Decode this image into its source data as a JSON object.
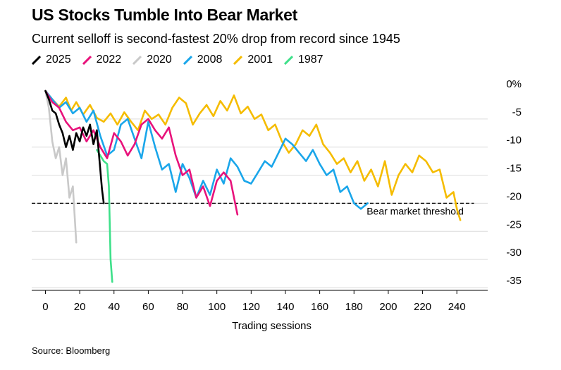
{
  "header": {
    "title": "US Stocks Tumble Into Bear Market",
    "subtitle": "Current selloff is second-fastest 20% drop from record since 1945"
  },
  "legend": {
    "items": [
      {
        "label": "2025",
        "color": "#000000"
      },
      {
        "label": "2022",
        "color": "#e8127b"
      },
      {
        "label": "2020",
        "color": "#c9c9c9"
      },
      {
        "label": "2008",
        "color": "#1aa6ea"
      },
      {
        "label": "2001",
        "color": "#f5bc00"
      },
      {
        "label": "1987",
        "color": "#3ee08a"
      }
    ]
  },
  "footer": {
    "source": "Source: Bloomberg"
  },
  "chart_data": {
    "type": "line",
    "title": "US Stocks Tumble Into Bear Market",
    "xlabel": "Trading sessions",
    "ylabel": "",
    "xlim": [
      -8,
      258
    ],
    "ylim": [
      -35.5,
      1
    ],
    "x_ticks": [
      0,
      20,
      40,
      60,
      80,
      100,
      120,
      140,
      160,
      180,
      200,
      220,
      240
    ],
    "x_tick_labels": [
      "0",
      "20",
      "40",
      "60",
      "80",
      "100",
      "120",
      "140",
      "160",
      "180",
      "200",
      "220",
      "240"
    ],
    "y_ticks": [
      0,
      -5,
      -10,
      -15,
      -20,
      -25,
      -30,
      -35
    ],
    "y_tick_labels": [
      "0%",
      "-5",
      "-10",
      "-15",
      "-20",
      "-25",
      "-30",
      "-35"
    ],
    "grid": true,
    "threshold": {
      "value": -20,
      "label": "Bear market threshold"
    },
    "series": [
      {
        "name": "2001",
        "color": "#f5bc00",
        "x": [
          0,
          4,
          8,
          12,
          15,
          18,
          22,
          26,
          30,
          34,
          38,
          42,
          46,
          50,
          54,
          58,
          62,
          66,
          70,
          74,
          78,
          82,
          86,
          90,
          94,
          98,
          102,
          106,
          110,
          114,
          118,
          122,
          126,
          130,
          134,
          138,
          142,
          146,
          150,
          154,
          158,
          162,
          166,
          170,
          174,
          178,
          182,
          186,
          190,
          194,
          198,
          202,
          206,
          210,
          214,
          218,
          222,
          226,
          230,
          234,
          238,
          240,
          242
        ],
        "y": [
          0,
          -1.5,
          -2.8,
          -1.2,
          -3.5,
          -2.0,
          -4.2,
          -2.5,
          -4.8,
          -5.5,
          -4.0,
          -6.0,
          -3.8,
          -5.5,
          -7.0,
          -3.5,
          -5.0,
          -4.2,
          -6.0,
          -3.0,
          -1.2,
          -2.2,
          -6.0,
          -4.0,
          -2.5,
          -4.5,
          -1.8,
          -3.5,
          -0.8,
          -4.0,
          -2.8,
          -5.0,
          -4.2,
          -7.0,
          -6.0,
          -9.0,
          -11.0,
          -9.5,
          -7.0,
          -8.0,
          -6.0,
          -9.5,
          -11.0,
          -13.0,
          -12.0,
          -14.5,
          -12.5,
          -16.0,
          -14.0,
          -17.0,
          -12.5,
          -18.5,
          -15.0,
          -13.0,
          -14.5,
          -11.5,
          -12.5,
          -14.5,
          -14.0,
          -19.0,
          -18.0,
          -21.0,
          -23.0
        ]
      },
      {
        "name": "2008",
        "color": "#1aa6ea",
        "x": [
          0,
          4,
          8,
          12,
          16,
          20,
          24,
          28,
          32,
          36,
          40,
          44,
          48,
          52,
          56,
          60,
          64,
          68,
          72,
          76,
          80,
          84,
          88,
          92,
          96,
          100,
          104,
          108,
          112,
          116,
          120,
          124,
          128,
          132,
          136,
          140,
          144,
          148,
          152,
          156,
          160,
          164,
          168,
          172,
          176,
          180,
          184,
          188
        ],
        "y": [
          0,
          -1.5,
          -3.0,
          -2.0,
          -4.0,
          -3.0,
          -5.5,
          -3.5,
          -8.0,
          -11.5,
          -10.5,
          -6.0,
          -5.0,
          -8.5,
          -12.0,
          -5.5,
          -10.0,
          -14.0,
          -13.0,
          -18.0,
          -13.0,
          -15.5,
          -19.0,
          -16.0,
          -18.5,
          -14.0,
          -16.5,
          -12.0,
          -13.5,
          -16.0,
          -16.5,
          -14.5,
          -12.5,
          -13.5,
          -11.0,
          -8.5,
          -9.5,
          -11.0,
          -12.5,
          -10.5,
          -13.0,
          -15.0,
          -14.0,
          -18.0,
          -17.0,
          -20.0,
          -21.0,
          -20.0
        ]
      },
      {
        "name": "2022",
        "color": "#e8127b",
        "x": [
          0,
          4,
          8,
          12,
          16,
          20,
          24,
          28,
          32,
          36,
          40,
          44,
          48,
          52,
          56,
          60,
          64,
          68,
          72,
          76,
          80,
          84,
          88,
          92,
          96,
          100,
          104,
          108,
          112
        ],
        "y": [
          0,
          -2.0,
          -3.0,
          -5.5,
          -7.0,
          -6.5,
          -9.0,
          -7.0,
          -10.0,
          -12.0,
          -7.5,
          -9.0,
          -11.5,
          -9.5,
          -6.0,
          -5.0,
          -7.0,
          -8.5,
          -6.5,
          -11.5,
          -15.0,
          -14.0,
          -19.0,
          -17.0,
          -20.5,
          -16.0,
          -14.5,
          -16.0,
          -22.0
        ]
      },
      {
        "name": "2020",
        "color": "#c9c9c9",
        "x": [
          0,
          2,
          4,
          6,
          8,
          10,
          12,
          14,
          16,
          18
        ],
        "y": [
          0,
          -3.0,
          -9.0,
          -12.0,
          -10.0,
          -15.0,
          -12.0,
          -19.0,
          -17.0,
          -27.0
        ]
      },
      {
        "name": "1987",
        "color": "#3ee08a",
        "x": [
          30,
          32,
          34,
          36,
          37,
          38,
          39
        ],
        "y": [
          -10.5,
          -11.5,
          -12.5,
          -13.0,
          -17.0,
          -30.0,
          -34.0
        ]
      },
      {
        "name": "2025",
        "color": "#000000",
        "x": [
          0,
          2,
          4,
          6,
          8,
          10,
          12,
          14,
          16,
          18,
          20,
          22,
          24,
          26,
          28,
          30,
          32,
          33,
          34
        ],
        "y": [
          0,
          -1.5,
          -3.5,
          -4.0,
          -6.0,
          -7.5,
          -10.0,
          -8.0,
          -10.5,
          -7.5,
          -9.0,
          -6.5,
          -8.0,
          -6.0,
          -9.5,
          -7.0,
          -14.0,
          -17.5,
          -20.0
        ]
      }
    ]
  }
}
